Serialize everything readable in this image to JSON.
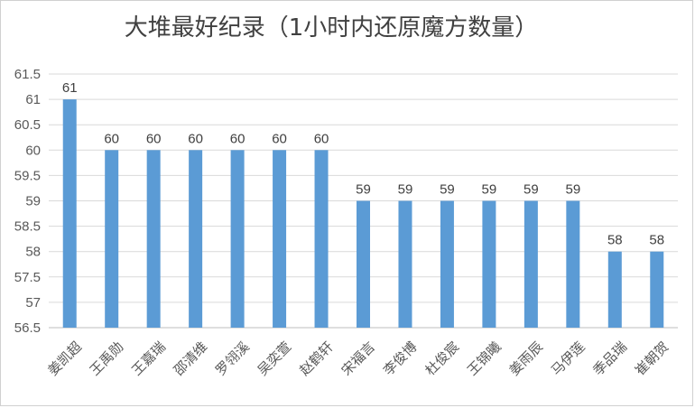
{
  "chart_data": {
    "type": "bar",
    "title": "大堆最好纪录（1小时内还原魔方数量）",
    "categories": [
      "姜凯超",
      "王禹勋",
      "王嘉瑞",
      "邵清维",
      "罗翎溪",
      "吴奕萱",
      "赵鹤轩",
      "宋福言",
      "李俊博",
      "杜俊宸",
      "王锦曦",
      "姜雨辰",
      "马伊莲",
      "季品瑞",
      "崔朝贺"
    ],
    "values": [
      61,
      60,
      60,
      60,
      60,
      60,
      60,
      59,
      59,
      59,
      59,
      59,
      59,
      58,
      58
    ],
    "ylim": [
      56.5,
      61.5
    ],
    "yticks": [
      "56.5",
      "57",
      "57.5",
      "58",
      "58.5",
      "59",
      "59.5",
      "60",
      "60.5",
      "61",
      "61.5"
    ],
    "grid": true,
    "bar_color": "#5b9bd5",
    "xlabel": "",
    "ylabel": ""
  }
}
